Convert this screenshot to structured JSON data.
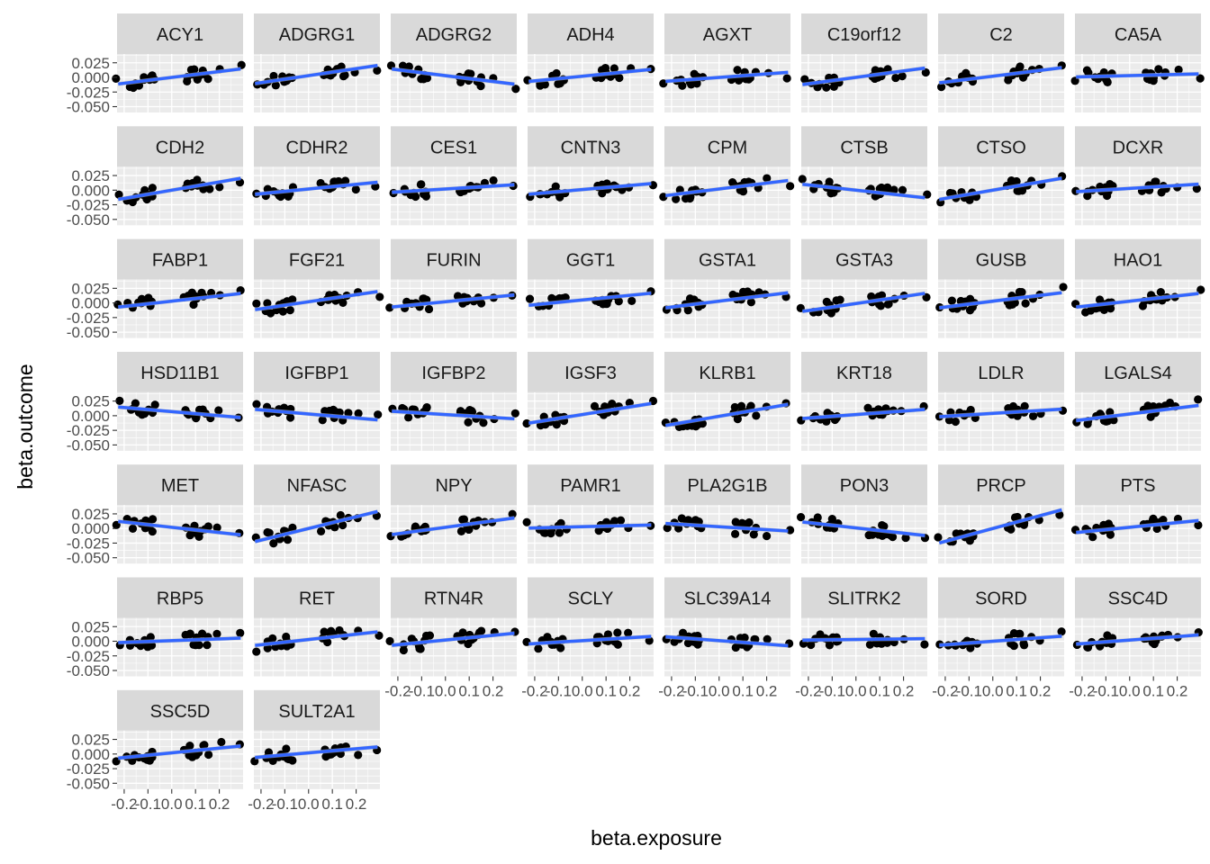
{
  "chart_data": {
    "type": "scatter",
    "xlabel": "beta.exposure",
    "ylabel": "beta.outcome",
    "xlim": [
      -0.23,
      0.3
    ],
    "ylim": [
      -0.06,
      0.04
    ],
    "x_ticks": [
      -0.2,
      -0.1,
      0.0,
      0.1,
      0.2
    ],
    "x_tick_labels": [
      "-0.2",
      "-0.1",
      "0.0",
      "0.1",
      "0.2"
    ],
    "y_ticks": [
      0.025,
      0.0,
      -0.025,
      -0.05
    ],
    "y_tick_labels": [
      "0.025",
      "0.000",
      "-0.025",
      "-0.050"
    ],
    "grid": true,
    "colors": {
      "panel_background": "#ebebeb",
      "grid": "#ffffff",
      "strip_background": "#d9d9d9",
      "points": "#000000",
      "fit_line": "#3366ff",
      "confidence_band": "#bfbfbf"
    },
    "panels": [
      {
        "name": "ACY1",
        "slope": 0.05,
        "intercept": 0.0
      },
      {
        "name": "ADGRG1",
        "slope": 0.06,
        "intercept": 0.003
      },
      {
        "name": "ADGRG2",
        "slope": -0.05,
        "intercept": 0.003
      },
      {
        "name": "ADH4",
        "slope": 0.04,
        "intercept": 0.002
      },
      {
        "name": "AGXT",
        "slope": 0.03,
        "intercept": 0.0
      },
      {
        "name": "C19orf12",
        "slope": 0.055,
        "intercept": 0.0
      },
      {
        "name": "C2",
        "slope": 0.05,
        "intercept": 0.002
      },
      {
        "name": "CA5A",
        "slope": 0.01,
        "intercept": 0.003
      },
      {
        "name": "CDH2",
        "slope": 0.07,
        "intercept": 0.0
      },
      {
        "name": "CDHR2",
        "slope": 0.04,
        "intercept": 0.002
      },
      {
        "name": "CES1",
        "slope": 0.025,
        "intercept": 0.002
      },
      {
        "name": "CNTN3",
        "slope": 0.035,
        "intercept": 0.001
      },
      {
        "name": "CPM",
        "slope": 0.05,
        "intercept": 0.002
      },
      {
        "name": "CTSB",
        "slope": -0.045,
        "intercept": 0.0
      },
      {
        "name": "CTSO",
        "slope": 0.07,
        "intercept": 0.0
      },
      {
        "name": "DCXR",
        "slope": 0.025,
        "intercept": 0.003
      },
      {
        "name": "FABP1",
        "slope": 0.045,
        "intercept": 0.003
      },
      {
        "name": "FGF21",
        "slope": 0.06,
        "intercept": 0.002
      },
      {
        "name": "FURIN",
        "slope": 0.04,
        "intercept": 0.002
      },
      {
        "name": "GGT1",
        "slope": 0.04,
        "intercept": 0.005
      },
      {
        "name": "GSTA1",
        "slope": 0.05,
        "intercept": 0.003
      },
      {
        "name": "GSTA3",
        "slope": 0.06,
        "intercept": -0.001
      },
      {
        "name": "GUSB",
        "slope": 0.05,
        "intercept": 0.003
      },
      {
        "name": "HAO1",
        "slope": 0.045,
        "intercept": 0.003
      },
      {
        "name": "HSD11B1",
        "slope": -0.035,
        "intercept": 0.007
      },
      {
        "name": "IGFBP1",
        "slope": -0.035,
        "intercept": 0.003
      },
      {
        "name": "IGFBP2",
        "slope": -0.025,
        "intercept": 0.002
      },
      {
        "name": "IGSF3",
        "slope": 0.065,
        "intercept": 0.002
      },
      {
        "name": "KLRB1",
        "slope": 0.07,
        "intercept": -0.001
      },
      {
        "name": "KRT18",
        "slope": 0.03,
        "intercept": 0.002
      },
      {
        "name": "LDLR",
        "slope": 0.025,
        "intercept": 0.004
      },
      {
        "name": "LGALS4",
        "slope": 0.05,
        "intercept": 0.003
      },
      {
        "name": "MET",
        "slope": -0.045,
        "intercept": 0.002
      },
      {
        "name": "NFASC",
        "slope": 0.1,
        "intercept": 0.0
      },
      {
        "name": "NPY",
        "slope": 0.055,
        "intercept": 0.002
      },
      {
        "name": "PAMR1",
        "slope": 0.01,
        "intercept": 0.003
      },
      {
        "name": "PLA2G1B",
        "slope": -0.025,
        "intercept": 0.003
      },
      {
        "name": "PON3",
        "slope": -0.045,
        "intercept": 0.001
      },
      {
        "name": "PRCP",
        "slope": 0.11,
        "intercept": 0.0
      },
      {
        "name": "PTS",
        "slope": 0.04,
        "intercept": 0.002
      },
      {
        "name": "RBP5",
        "slope": 0.015,
        "intercept": 0.001
      },
      {
        "name": "RET",
        "slope": 0.045,
        "intercept": 0.003
      },
      {
        "name": "RTN4R",
        "slope": 0.04,
        "intercept": 0.002
      },
      {
        "name": "SCLY",
        "slope": 0.025,
        "intercept": 0.001
      },
      {
        "name": "SLC39A14",
        "slope": -0.03,
        "intercept": 0.001
      },
      {
        "name": "SLITRK2",
        "slope": 0.005,
        "intercept": 0.003
      },
      {
        "name": "SORD",
        "slope": 0.03,
        "intercept": 0.0
      },
      {
        "name": "SSC4D",
        "slope": 0.03,
        "intercept": 0.002
      },
      {
        "name": "SSC5D",
        "slope": 0.04,
        "intercept": 0.002
      },
      {
        "name": "SULT2A1",
        "slope": 0.035,
        "intercept": 0.002
      }
    ]
  }
}
